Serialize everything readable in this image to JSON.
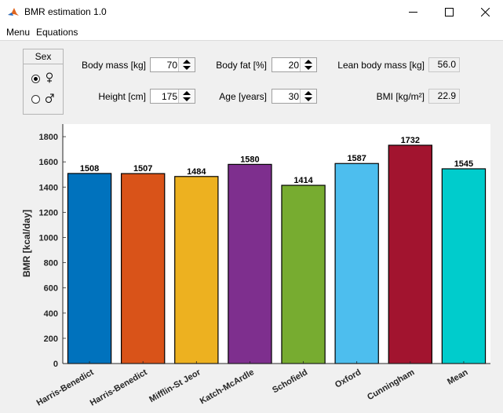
{
  "window": {
    "title": "BMR estimation 1.0"
  },
  "menu": {
    "items": [
      "Menu",
      "Equations"
    ]
  },
  "sex": {
    "title": "Sex",
    "options": [
      {
        "symbol": "♀",
        "selected": true
      },
      {
        "symbol": "♂",
        "selected": false
      }
    ]
  },
  "inputs": {
    "body_mass": {
      "label": "Body mass [kg]",
      "value": "70"
    },
    "height": {
      "label": "Height [cm]",
      "value": "175"
    },
    "body_fat": {
      "label": "Body fat [%]",
      "value": "20"
    },
    "age": {
      "label": "Age [years]",
      "value": "30"
    }
  },
  "outputs": {
    "lean_body_mass": {
      "label": "Lean body mass [kg]",
      "value": "56.0"
    },
    "bmi": {
      "label": "BMI [kg/m²]",
      "value": "22.9"
    }
  },
  "chart_data": {
    "type": "bar",
    "categories": [
      "Harris-Benedict",
      "Harris-Benedict",
      "Mifflin-St Jeor",
      "Katch-McArdle",
      "Schofield",
      "Oxford",
      "Cunningham",
      "Mean"
    ],
    "values": [
      1508,
      1507,
      1484,
      1580,
      1414,
      1587,
      1732,
      1545
    ],
    "data_labels": [
      "1508",
      "1507",
      "1484",
      "1580",
      "1414",
      "1587",
      "1732",
      "1545"
    ],
    "colors": [
      "#0072bd",
      "#d95319",
      "#edb120",
      "#7e2f8e",
      "#77ac30",
      "#4dbeee",
      "#a2142f",
      "#00cccc"
    ],
    "ylabel": "BMR [kcal/day]",
    "xlabel": "",
    "ylim": [
      0,
      1900
    ],
    "yticks": [
      0,
      200,
      400,
      600,
      800,
      1000,
      1200,
      1400,
      1600,
      1800
    ],
    "grid": false
  }
}
